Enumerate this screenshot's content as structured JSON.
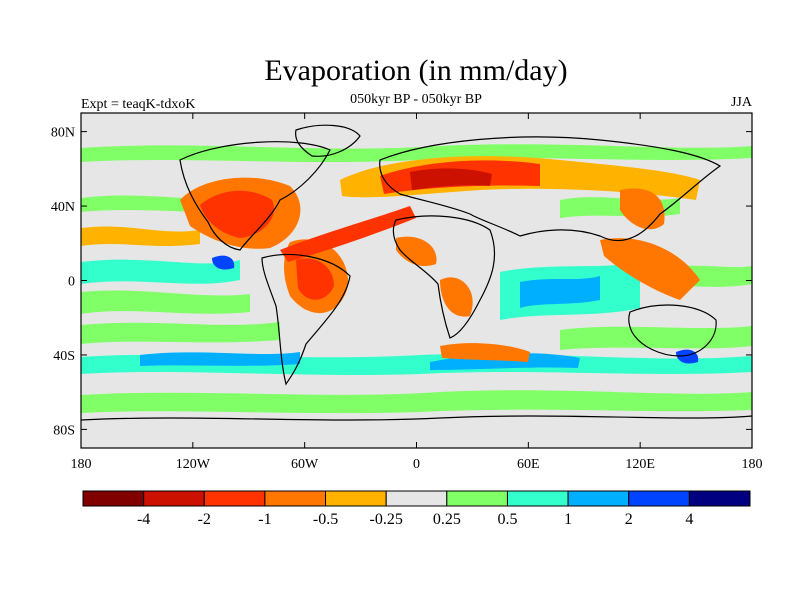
{
  "figure": {
    "title": "Evaporation (in mm/day)",
    "subtitle": "050kyr BP - 050kyr BP",
    "left_label": "Expt = teaqK-tdxoK",
    "right_label": "JJA"
  },
  "chart_data": {
    "type": "map",
    "projection": "cylindrical-equidistant",
    "lon_range": [
      -180,
      180
    ],
    "lat_range": [
      -90,
      90
    ],
    "x_ticks": [
      "180",
      "120W",
      "60W",
      "0",
      "60E",
      "120E",
      "180"
    ],
    "y_ticks": [
      "80N",
      "40N",
      "0",
      "40S",
      "80S"
    ],
    "colorbar": {
      "labels": [
        "-4",
        "-2",
        "-1",
        "-0.5",
        "-0.25",
        "0.25",
        "0.5",
        "1",
        "2",
        "4"
      ],
      "colors": [
        "#800000",
        "#cc1100",
        "#ff3300",
        "#ff7700",
        "#ffb300",
        "#e6e6e6",
        "#80ff66",
        "#33ffcc",
        "#00b0ff",
        "#0044ff",
        "#000080"
      ]
    }
  }
}
